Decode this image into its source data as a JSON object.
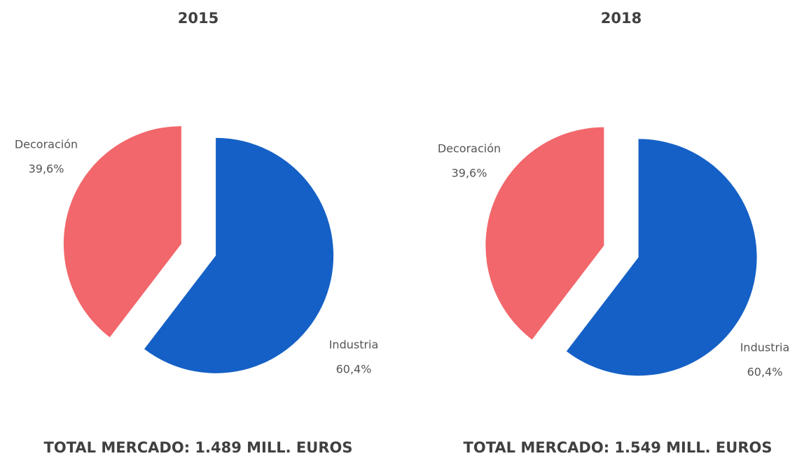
{
  "chart_data": [
    {
      "type": "pie",
      "title": "2015",
      "categories": [
        "Industria",
        "Decoración"
      ],
      "values": [
        60.4,
        39.6
      ],
      "value_labels": [
        "60,4%",
        "39,6%"
      ],
      "colors": [
        "#1560c6",
        "#f2676b"
      ],
      "caption": "TOTAL MERCADO: 1.489 MILL. EUROS"
    },
    {
      "type": "pie",
      "title": "2018",
      "categories": [
        "Industria",
        "Decoración"
      ],
      "values": [
        60.4,
        39.6
      ],
      "value_labels": [
        "60,4%",
        "39,6%"
      ],
      "colors": [
        "#1560c6",
        "#f2676b"
      ],
      "caption": "TOTAL MERCADO: 1.549 MILL. EUROS"
    }
  ]
}
